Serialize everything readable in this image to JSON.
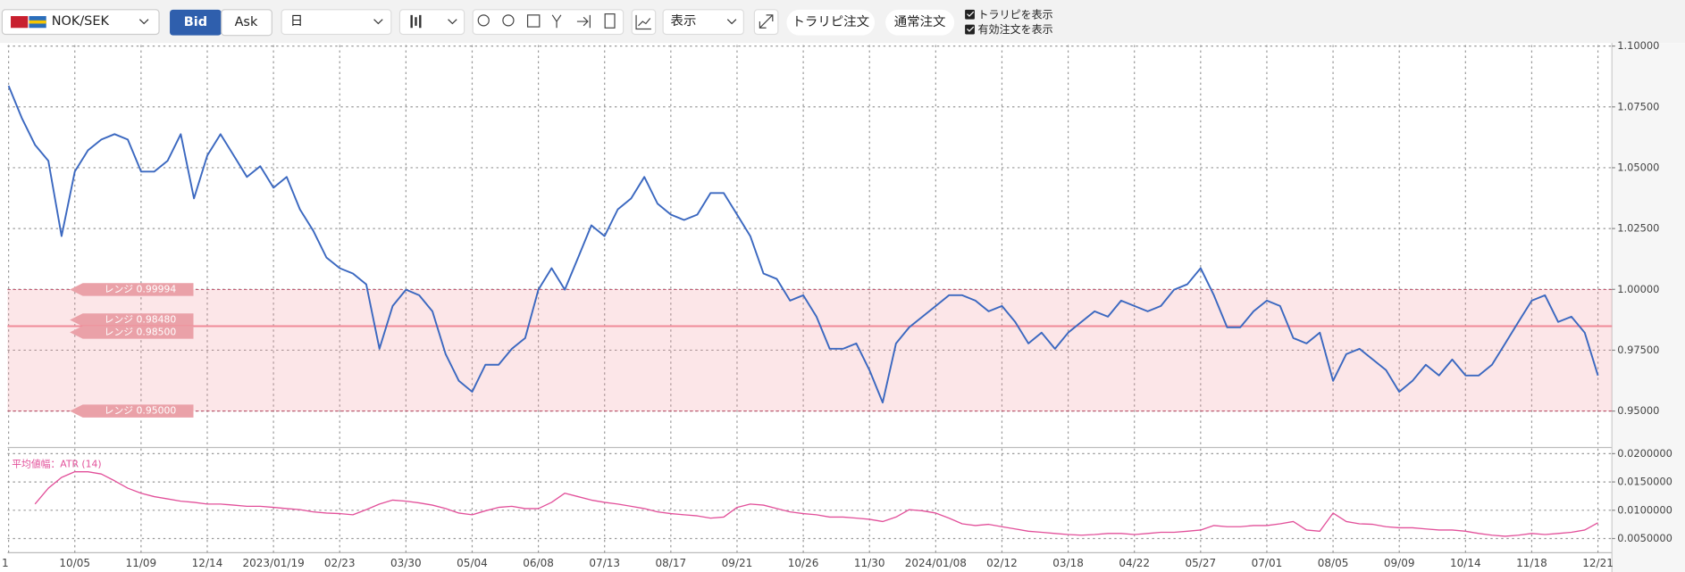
{
  "toolbar": {
    "pair": "NOK/SEK",
    "bid": "Bid",
    "ask": "Ask",
    "period": "日",
    "display": "表示",
    "trarepi_order": "トラリピ注文",
    "normal_order": "通常注文",
    "show_trarepi": "トラリピを表示",
    "show_orders": "有効注文を表示"
  },
  "chart_data": [
    {
      "type": "line",
      "series": [
        {
          "name": "NOK/SEK",
          "color": "#3b68c0",
          "values": [
            1.0837,
            1.0704,
            1.0594,
            1.0528,
            1.0219,
            1.0484,
            1.0572,
            1.0616,
            1.0638,
            1.0616,
            1.0484,
            1.0484,
            1.0528,
            1.0638,
            1.0374,
            1.055,
            1.0638,
            1.055,
            1.0462,
            1.0506,
            1.0418,
            1.0462,
            1.0329,
            1.0241,
            1.0131,
            1.0087,
            1.0065,
            1.0021,
            0.9756,
            0.9932,
            0.9999,
            0.9976,
            0.991,
            0.9734,
            0.9624,
            0.9579,
            0.969,
            0.969,
            0.9756,
            0.98,
            0.9999,
            1.0087,
            0.9999,
            1.0131,
            1.0263,
            1.0219,
            1.0329,
            1.0374,
            1.0462,
            1.0352,
            1.0307,
            1.0285,
            1.0307,
            1.0396,
            1.0396,
            1.0307,
            1.0219,
            1.0065,
            1.0043,
            0.9954,
            0.9976,
            0.9888,
            0.9756,
            0.9756,
            0.9778,
            0.9668,
            0.9535,
            0.9778,
            0.9844,
            0.9888,
            0.9932,
            0.9976,
            0.9976,
            0.9954,
            0.991,
            0.9932,
            0.9866,
            0.9778,
            0.9822,
            0.9756,
            0.9822,
            0.9866,
            0.991,
            0.9888,
            0.9954,
            0.9932,
            0.991,
            0.9932,
            0.9999,
            1.0021,
            1.0087,
            0.9976,
            0.9844,
            0.9844,
            0.991,
            0.9954,
            0.9932,
            0.98,
            0.9778,
            0.9822,
            0.9624,
            0.9734,
            0.9756,
            0.9712,
            0.9668,
            0.9579,
            0.9624,
            0.969,
            0.9646,
            0.9712,
            0.9646,
            0.9646,
            0.969,
            0.9778,
            0.9866,
            0.9954,
            0.9976,
            0.9866,
            0.9888,
            0.9822,
            0.9646
          ]
        }
      ],
      "ylim": [
        0.9359,
        1.1004
      ],
      "yticks": [
        {
          "value": 1.1,
          "label": "1.10000"
        },
        {
          "value": 1.075,
          "label": "1.07500"
        },
        {
          "value": 1.05,
          "label": "1.05000"
        },
        {
          "value": 1.025,
          "label": "1.02500"
        },
        {
          "value": 1.0,
          "label": "1.00000"
        },
        {
          "value": 0.975,
          "label": "0.97500"
        },
        {
          "value": 0.95,
          "label": "0.95000"
        }
      ],
      "annotations": [
        {
          "text": "レンジ 0.99994",
          "value": 0.99994
        },
        {
          "text": "レンジ 0.98480",
          "value": 0.9848
        },
        {
          "text": "レンジ 0.98500",
          "value": 0.985
        },
        {
          "text": "レンジ 0.95000",
          "value": 0.95
        }
      ],
      "grid": true
    },
    {
      "type": "line",
      "categories": [
        "1",
        null,
        null,
        null,
        null,
        "10/05",
        null,
        null,
        null,
        null,
        "11/09",
        null,
        null,
        null,
        null,
        "12/14",
        null,
        null,
        null,
        null,
        "2023/01/19",
        null,
        null,
        null,
        null,
        "02/23",
        null,
        null,
        null,
        null,
        "03/30",
        null,
        null,
        null,
        null,
        "05/04",
        null,
        null,
        null,
        null,
        "06/08",
        null,
        null,
        null,
        null,
        "07/13",
        null,
        null,
        null,
        null,
        "08/17",
        null,
        null,
        null,
        null,
        "09/21",
        null,
        null,
        null,
        null,
        "10/26",
        null,
        null,
        null,
        null,
        "11/30",
        null,
        null,
        null,
        null,
        "2024/01/08",
        null,
        null,
        null,
        null,
        "02/12",
        null,
        null,
        null,
        null,
        "03/18",
        null,
        null,
        null,
        null,
        "04/22",
        null,
        null,
        null,
        null,
        "05/27",
        null,
        null,
        null,
        null,
        "07/01",
        null,
        null,
        null,
        null,
        "08/05",
        null,
        null,
        null,
        null,
        "09/09",
        null,
        null,
        null,
        null,
        "10/14",
        null,
        null,
        null,
        null,
        "11/18",
        null,
        null,
        null,
        null,
        "12/21"
      ],
      "series": [
        {
          "name": "平均値幅：ATR (14)",
          "color": "#e2509a",
          "values": [
            null,
            null,
            0.0111,
            0.0139,
            0.0158,
            0.0168,
            0.0168,
            0.0164,
            0.0152,
            0.0139,
            0.013,
            0.0124,
            0.012,
            0.0116,
            0.0114,
            0.0111,
            0.0111,
            0.0109,
            0.0107,
            0.0107,
            0.0105,
            0.0103,
            0.0101,
            0.0097,
            0.0095,
            0.0094,
            0.0092,
            0.0101,
            0.0111,
            0.0118,
            0.0116,
            0.0113,
            0.0109,
            0.0103,
            0.0095,
            0.0092,
            0.0099,
            0.0105,
            0.0107,
            0.0103,
            0.0103,
            0.0114,
            0.013,
            0.0124,
            0.0118,
            0.0114,
            0.0111,
            0.0107,
            0.0103,
            0.0097,
            0.0094,
            0.0092,
            0.009,
            0.0086,
            0.0088,
            0.0105,
            0.0111,
            0.0109,
            0.0103,
            0.0097,
            0.0094,
            0.0092,
            0.0088,
            0.0088,
            0.0086,
            0.0084,
            0.008,
            0.0088,
            0.0101,
            0.0099,
            0.0095,
            0.0086,
            0.0076,
            0.0073,
            0.0075,
            0.0071,
            0.0067,
            0.0063,
            0.0061,
            0.0059,
            0.0057,
            0.0056,
            0.0057,
            0.0059,
            0.0059,
            0.0057,
            0.0059,
            0.0061,
            0.0061,
            0.0063,
            0.0065,
            0.0073,
            0.0071,
            0.0071,
            0.0073,
            0.0073,
            0.0076,
            0.008,
            0.0065,
            0.0063,
            0.0095,
            0.008,
            0.0076,
            0.0075,
            0.0071,
            0.0069,
            0.0069,
            0.0067,
            0.0065,
            0.0065,
            0.0063,
            0.0059,
            0.0056,
            0.0054,
            0.0056,
            0.0059,
            0.0057,
            0.0059,
            0.0061,
            0.0065,
            0.0078
          ]
        }
      ],
      "ylim": [
        0.0025,
        0.0209
      ],
      "yticks": [
        {
          "value": 0.02,
          "label": "0.0200000"
        },
        {
          "value": 0.015,
          "label": "0.0150000"
        },
        {
          "value": 0.01,
          "label": "0.0100000"
        },
        {
          "value": 0.005,
          "label": "0.0050000"
        }
      ],
      "grid": true
    }
  ]
}
